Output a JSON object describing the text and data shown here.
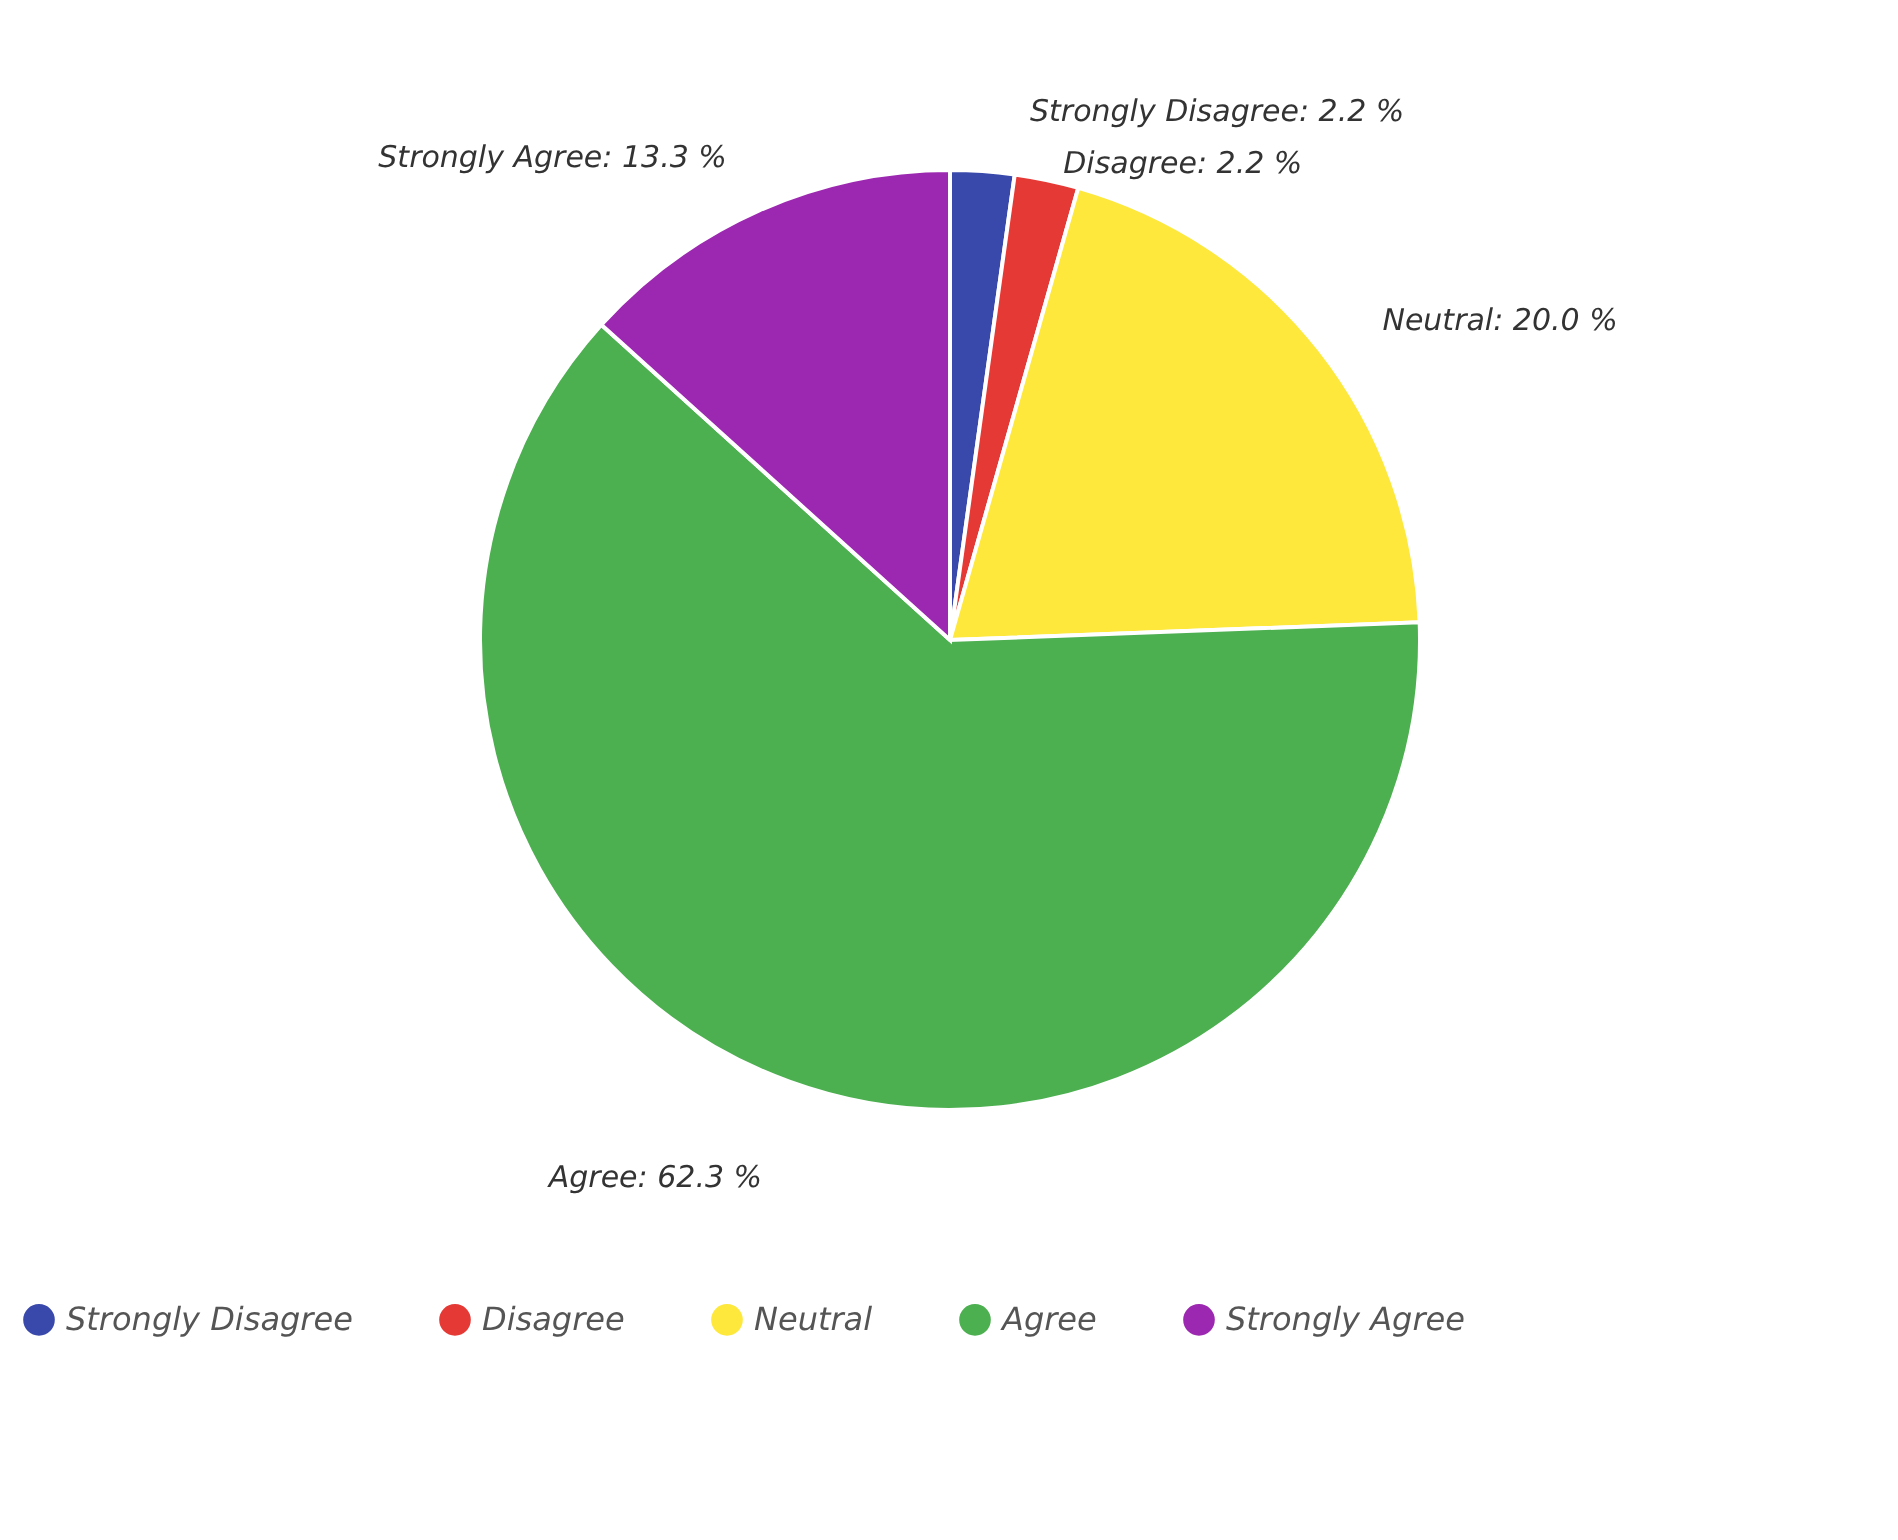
{
  "chart_data": {
    "type": "pie",
    "categories": [
      "Strongly Disagree",
      "Disagree",
      "Neutral",
      "Agree",
      "Strongly Agree"
    ],
    "values": [
      2.2,
      2.2,
      20.0,
      62.3,
      13.3
    ],
    "colors": [
      "#3949ab",
      "#e53935",
      "#fde83b",
      "#4caf50",
      "#9c27b0"
    ],
    "value_labels": [
      "Strongly Disagree: 2.2 %",
      "Disagree: 2.2 %",
      "Neutral: 20.0 %",
      "Agree: 62.3 %",
      "Strongly Agree: 13.3 %"
    ],
    "legend": "bottom"
  }
}
